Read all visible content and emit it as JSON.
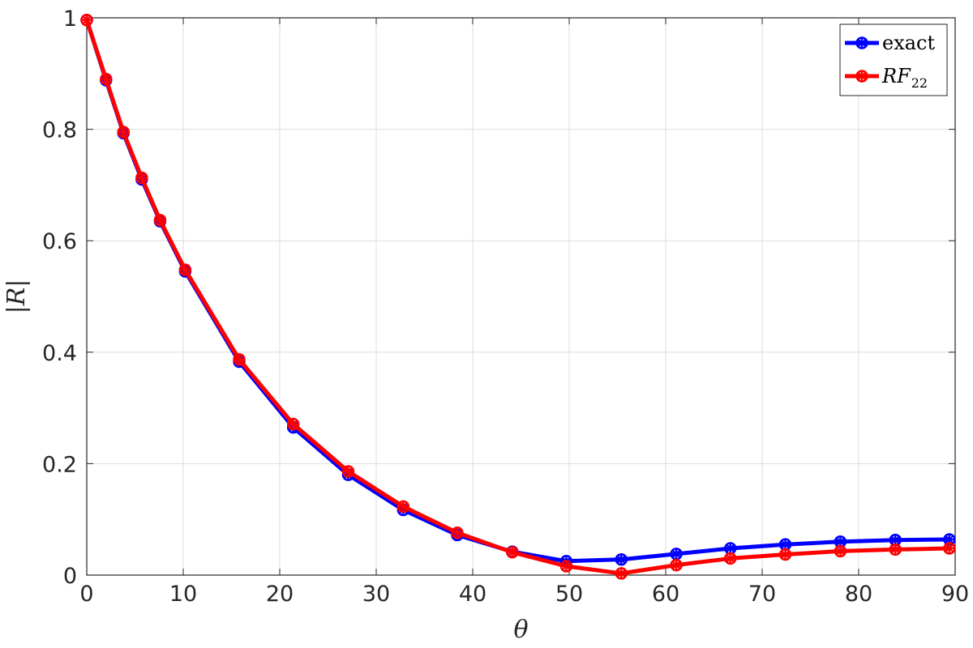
{
  "chart_data": {
    "type": "line",
    "xlabel": "θ",
    "ylabel": "|R|",
    "xlim": [
      0,
      90
    ],
    "ylim": [
      0,
      1
    ],
    "xticks": [
      "0",
      "10",
      "20",
      "30",
      "40",
      "50",
      "60",
      "70",
      "80",
      "90"
    ],
    "yticks": [
      "0",
      "0.2",
      "0.4",
      "0.6",
      "0.8",
      "1"
    ],
    "grid": true,
    "legend_position": "top-right",
    "x": [
      0,
      2.0,
      3.8,
      5.7,
      7.6,
      10.2,
      15.8,
      21.4,
      27.1,
      32.8,
      38.4,
      44.1,
      49.7,
      55.4,
      61.1,
      66.7,
      72.4,
      78.1,
      83.8,
      89.4
    ],
    "series": [
      {
        "name": "exact",
        "color": "#0000ff",
        "values": [
          0.996,
          0.888,
          0.793,
          0.71,
          0.635,
          0.545,
          0.383,
          0.265,
          0.18,
          0.117,
          0.072,
          0.042,
          0.025,
          0.028,
          0.038,
          0.048,
          0.055,
          0.06,
          0.063,
          0.064
        ]
      },
      {
        "name": "RF22",
        "label_main": "RF",
        "label_sub": "22",
        "color": "#ff0000",
        "values": [
          0.996,
          0.89,
          0.795,
          0.713,
          0.637,
          0.548,
          0.387,
          0.271,
          0.186,
          0.123,
          0.076,
          0.041,
          0.016,
          0.003,
          0.018,
          0.03,
          0.037,
          0.043,
          0.046,
          0.048
        ]
      }
    ]
  }
}
